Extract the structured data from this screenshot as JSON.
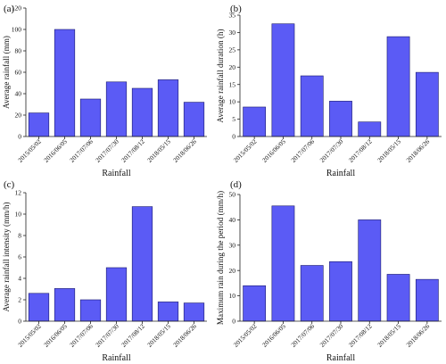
{
  "colors": {
    "bar": "#5b5bf5",
    "bar_edge": "#1a1a6e",
    "axis": "#222222"
  },
  "chart_data": [
    {
      "panel": "(a)",
      "type": "bar",
      "categories": [
        "2015/05/02",
        "2016/06/05",
        "2017/07/06",
        "2017/07/30",
        "2017/08/12",
        "2018/05/15",
        "2018/06/26"
      ],
      "values": [
        22,
        100,
        35,
        51,
        45,
        53,
        32
      ],
      "xlabel": "Rainfall",
      "ylabel": "Average rainfall (mm)",
      "ylim": [
        0,
        120
      ],
      "yticks": [
        "0",
        "20",
        "40",
        "60",
        "80",
        "100",
        "120"
      ],
      "grid": false
    },
    {
      "panel": "(b)",
      "type": "bar",
      "categories": [
        "2015/05/02",
        "2016/06/05",
        "2017/07/06",
        "2017/07/30",
        "2017/08/12",
        "2018/05/15",
        "2018/06/26"
      ],
      "values": [
        8.5,
        32.5,
        17.5,
        10.2,
        4.2,
        28.8,
        18.5
      ],
      "xlabel": "Rainfall",
      "ylabel": "Average rainfall duration (h)",
      "ylim": [
        0,
        35
      ],
      "yticks": [
        "0",
        "5",
        "10",
        "15",
        "20",
        "25",
        "30",
        "35"
      ],
      "grid": false
    },
    {
      "panel": "(c)",
      "type": "bar",
      "categories": [
        "2015/05/02",
        "2016/06/05",
        "2017/07/06",
        "2017/07/30",
        "2017/08/12",
        "2018/05/15",
        "2018/06/26"
      ],
      "values": [
        2.6,
        3.05,
        2.0,
        5.0,
        10.7,
        1.8,
        1.7
      ],
      "xlabel": "Rainfall",
      "ylabel": "Average rainfall intensity (mm/h)",
      "ylim": [
        0,
        12
      ],
      "yticks": [
        "0",
        "2",
        "4",
        "6",
        "8",
        "10",
        "12"
      ],
      "grid": false
    },
    {
      "panel": "(d)",
      "type": "bar",
      "categories": [
        "2015/05/02",
        "2016/06/05",
        "2017/07/06",
        "2017/07/30",
        "2017/08/12",
        "2018/05/15",
        "2018/06/26"
      ],
      "values": [
        14,
        45.5,
        22,
        23.5,
        40,
        18.5,
        16.5
      ],
      "xlabel": "Rainfall",
      "ylabel": "Maximum rain during the period (mm/h)",
      "ylim": [
        0,
        50
      ],
      "yticks": [
        "0",
        "10",
        "20",
        "30",
        "40",
        "50"
      ],
      "grid": false
    }
  ]
}
